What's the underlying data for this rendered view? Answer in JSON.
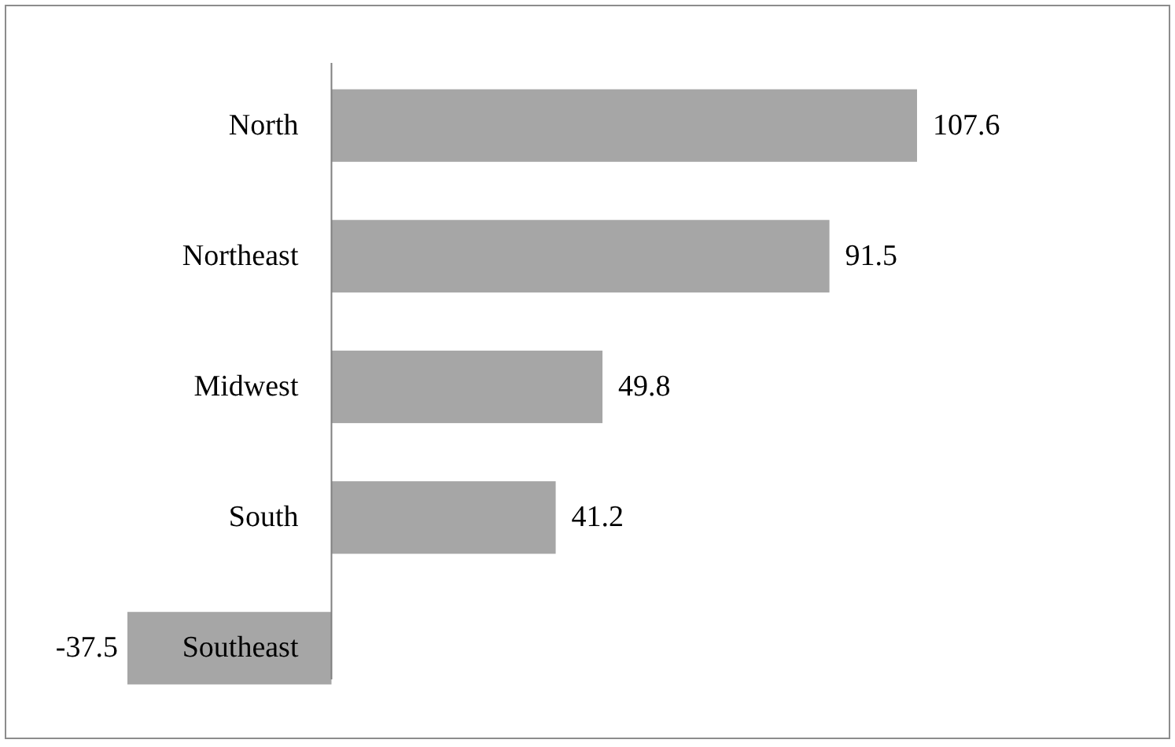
{
  "chart_data": {
    "type": "bar",
    "orientation": "horizontal",
    "categories": [
      "North",
      "Northeast",
      "Midwest",
      "South",
      "Southeast"
    ],
    "values": [
      107.6,
      91.5,
      49.8,
      41.2,
      -37.5
    ],
    "color": "#a6a6a6",
    "data_labels": true
  }
}
